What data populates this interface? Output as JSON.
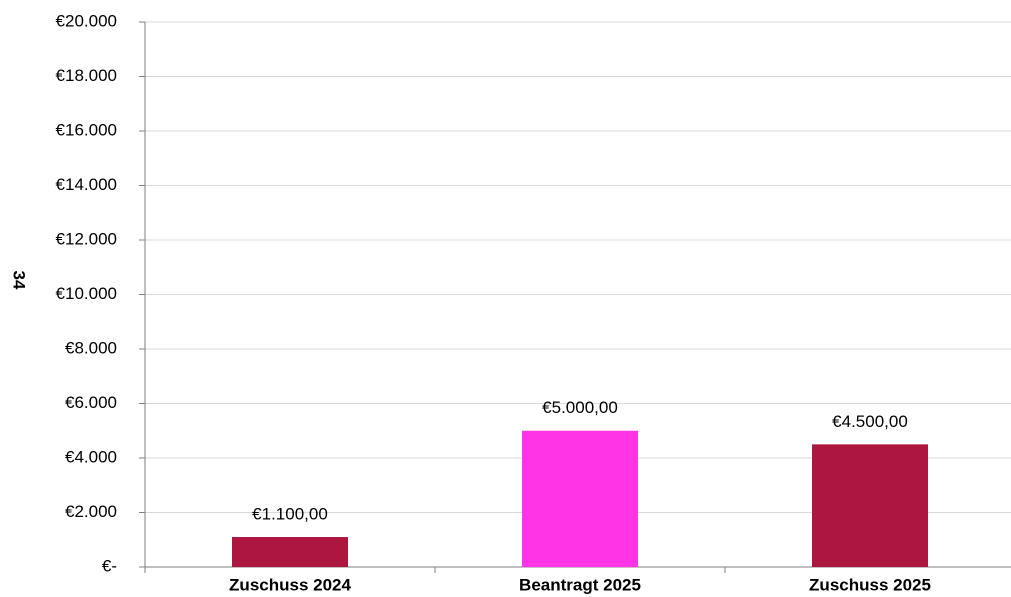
{
  "chart_data": {
    "type": "bar",
    "y_axis_label": "34",
    "categories": [
      "Zuschuss 2024",
      "Beantragt 2025",
      "Zuschuss 2025"
    ],
    "values": [
      1100,
      5000,
      4500
    ],
    "value_labels": [
      "€1.100,00",
      "€5.000,00",
      "€4.500,00"
    ],
    "colors": [
      "#ad163f",
      "#ff33e6",
      "#ad163f"
    ],
    "ylim": [
      0,
      20000
    ],
    "yticks": [
      {
        "value": 0,
        "label": "€-"
      },
      {
        "value": 2000,
        "label": "€2.000"
      },
      {
        "value": 4000,
        "label": "€4.000"
      },
      {
        "value": 6000,
        "label": "€6.000"
      },
      {
        "value": 8000,
        "label": "€8.000"
      },
      {
        "value": 10000,
        "label": "€10.000"
      },
      {
        "value": 12000,
        "label": "€12.000"
      },
      {
        "value": 14000,
        "label": "€14.000"
      },
      {
        "value": 16000,
        "label": "€16.000"
      },
      {
        "value": 18000,
        "label": "€18.000"
      },
      {
        "value": 20000,
        "label": "€20.000"
      }
    ],
    "grid": true
  }
}
